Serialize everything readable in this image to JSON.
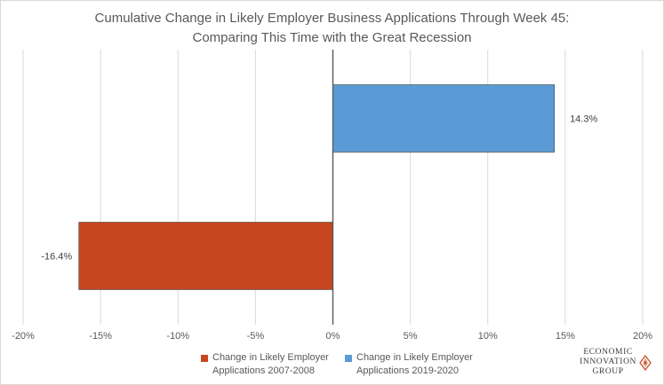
{
  "chart_data": {
    "type": "bar",
    "orientation": "horizontal",
    "title": "Cumulative Change in Likely Employer Business Applications Through Week 45:",
    "subtitle": "Comparing This Time with the Great Recession",
    "xlim": [
      -20,
      20
    ],
    "x_ticks": [
      -20,
      -15,
      -10,
      -5,
      0,
      5,
      10,
      15,
      20
    ],
    "x_tick_labels": [
      "-20%",
      "-15%",
      "-10%",
      "-5%",
      "0%",
      "5%",
      "10%",
      "15%",
      "20%"
    ],
    "grid": true,
    "legend_position": "bottom",
    "series": [
      {
        "name": "Change in Likely Employer Applications 2019-2020",
        "legend_lines": [
          "Change in Likely Employer",
          "Applications 2019-2020"
        ],
        "value": 14.3,
        "label": "14.3%",
        "color": "#5b9bd5"
      },
      {
        "name": "Change in Likely Employer Applications 2007-2008",
        "legend_lines": [
          "Change in Likely Employer",
          "Applications 2007-2008"
        ],
        "value": -16.4,
        "label": "-16.4%",
        "color": "#c5461f"
      }
    ]
  },
  "logo": {
    "lines": [
      "ECONOMIC",
      "INNOVATION",
      "GROUP"
    ],
    "color": "#c5461f"
  }
}
